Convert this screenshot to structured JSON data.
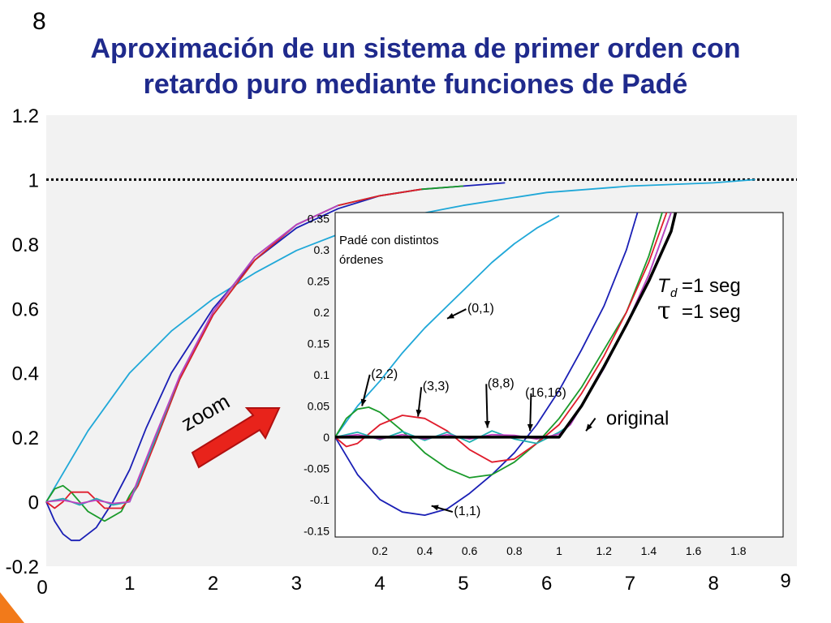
{
  "slide": {
    "number": "8",
    "title_line1": "Aproximación de un sistema de primer orden con",
    "title_line2": "retardo puro mediante funciones de Padé"
  },
  "colors": {
    "title": "#1f2a8c",
    "plot_bg": "#f2f2f2",
    "arrow": "#e8231b",
    "series": {
      "(0,1)": "#20a8d8",
      "(1,1)": "#1a1fb5",
      "(2,2)": "#1a9a2a",
      "(3,3)": "#e01c2c",
      "(8,8)": "#1fb0b0",
      "(16,16)": "#c040c0",
      "original": "#000000"
    }
  },
  "chart_data": [
    {
      "type": "line",
      "title": "",
      "xlabel": "",
      "ylabel": "",
      "xlim": [
        0,
        9
      ],
      "ylim": [
        -0.2,
        1.2
      ],
      "x_ticks": [
        "0",
        "1",
        "2",
        "3",
        "4",
        "5",
        "6",
        "7",
        "8",
        "9"
      ],
      "y_ticks": [
        "-0.2",
        "0",
        "0.2",
        "0.4",
        "0.6",
        "0.8",
        "1",
        "1.2"
      ],
      "reference_line": {
        "y": 1,
        "style": "dotted"
      },
      "series": [
        {
          "key": "(0,1)",
          "x": [
            0,
            0.5,
            1,
            1.5,
            2,
            2.5,
            3,
            3.5,
            4,
            5,
            6,
            7,
            8,
            8.5
          ],
          "y": [
            0,
            0.22,
            0.4,
            0.53,
            0.63,
            0.71,
            0.78,
            0.83,
            0.87,
            0.92,
            0.96,
            0.98,
            0.99,
            1.0
          ]
        },
        {
          "key": "(1,1)",
          "x": [
            0,
            0.1,
            0.2,
            0.3,
            0.4,
            0.6,
            0.8,
            1.0,
            1.2,
            1.5,
            2,
            2.5,
            3,
            3.5,
            4,
            4.5,
            5,
            5.5
          ],
          "y": [
            0,
            -0.06,
            -0.1,
            -0.12,
            -0.12,
            -0.08,
            0.0,
            0.1,
            0.23,
            0.4,
            0.6,
            0.75,
            0.85,
            0.91,
            0.95,
            0.97,
            0.98,
            0.99
          ]
        },
        {
          "key": "(2,2)",
          "x": [
            0,
            0.1,
            0.2,
            0.3,
            0.5,
            0.7,
            0.9,
            1.0,
            1.1,
            1.3,
            1.6,
            2,
            2.5,
            3,
            3.5,
            4,
            4.5,
            5
          ],
          "y": [
            0,
            0.04,
            0.05,
            0.03,
            -0.03,
            -0.06,
            -0.03,
            0.02,
            0.06,
            0.18,
            0.38,
            0.58,
            0.75,
            0.86,
            0.92,
            0.95,
            0.97,
            0.98
          ]
        },
        {
          "key": "(3,3)",
          "x": [
            0,
            0.1,
            0.2,
            0.3,
            0.5,
            0.7,
            0.9,
            1.0,
            1.1,
            1.3,
            1.6,
            2,
            2.5,
            3,
            3.5,
            4,
            4.5
          ],
          "y": [
            0,
            -0.02,
            0.0,
            0.03,
            0.03,
            -0.02,
            -0.02,
            0.01,
            0.05,
            0.18,
            0.38,
            0.58,
            0.75,
            0.86,
            0.92,
            0.95,
            0.97
          ]
        },
        {
          "key": "(8,8)",
          "x": [
            0,
            0.2,
            0.4,
            0.6,
            0.8,
            1.0,
            1.1,
            1.3,
            1.6,
            2,
            2.5,
            3,
            3.5
          ],
          "y": [
            0,
            0.01,
            -0.01,
            0.01,
            -0.01,
            0.0,
            0.06,
            0.19,
            0.39,
            0.59,
            0.76,
            0.86,
            0.92
          ]
        },
        {
          "key": "(16,16)",
          "x": [
            0,
            0.2,
            0.4,
            0.6,
            0.8,
            1.0,
            1.1,
            1.3,
            1.6,
            2,
            2.5,
            3,
            3.5
          ],
          "y": [
            0,
            0.005,
            -0.005,
            0.005,
            -0.005,
            0.0,
            0.07,
            0.2,
            0.39,
            0.59,
            0.76,
            0.86,
            0.92
          ]
        }
      ]
    },
    {
      "type": "line",
      "title": "Padé con distintos órdenes",
      "xlim": [
        0,
        2
      ],
      "ylim": [
        -0.16,
        0.36
      ],
      "x_ticks": [
        "0.2",
        "0.4",
        "0.6",
        "0.8",
        "1",
        "1.2",
        "1.4",
        "1.6",
        "1.8"
      ],
      "y_ticks": [
        "-0.15",
        "-0.1",
        "-0.05",
        "0",
        "0.05",
        "0.1",
        "0.15",
        "0.2",
        "0.25",
        "0.3",
        "0.35"
      ],
      "series": [
        {
          "key": "(0,1)",
          "label": "(0,1)",
          "x": [
            0,
            0.1,
            0.2,
            0.3,
            0.4,
            0.5,
            0.6,
            0.7,
            0.8,
            0.9,
            1.0
          ],
          "y": [
            0,
            0.05,
            0.09,
            0.135,
            0.175,
            0.21,
            0.245,
            0.28,
            0.31,
            0.335,
            0.355
          ]
        },
        {
          "key": "(1,1)",
          "label": "(1,1)",
          "x": [
            0,
            0.1,
            0.2,
            0.3,
            0.4,
            0.5,
            0.6,
            0.7,
            0.8,
            0.9,
            1.0,
            1.1,
            1.2,
            1.3,
            1.35
          ],
          "y": [
            0,
            -0.06,
            -0.1,
            -0.12,
            -0.125,
            -0.115,
            -0.09,
            -0.06,
            -0.025,
            0.02,
            0.075,
            0.14,
            0.21,
            0.3,
            0.36
          ]
        },
        {
          "key": "(2,2)",
          "label": "(2,2)",
          "x": [
            0,
            0.05,
            0.1,
            0.15,
            0.2,
            0.3,
            0.4,
            0.5,
            0.6,
            0.7,
            0.8,
            0.9,
            1.0,
            1.1,
            1.2,
            1.3,
            1.4,
            1.46
          ],
          "y": [
            0,
            0.03,
            0.045,
            0.048,
            0.04,
            0.01,
            -0.025,
            -0.05,
            -0.065,
            -0.06,
            -0.04,
            -0.01,
            0.03,
            0.08,
            0.14,
            0.2,
            0.29,
            0.36
          ]
        },
        {
          "key": "(3,3)",
          "label": "(3,3)",
          "x": [
            0,
            0.05,
            0.1,
            0.2,
            0.3,
            0.4,
            0.5,
            0.6,
            0.7,
            0.8,
            0.9,
            1.0,
            1.1,
            1.2,
            1.3,
            1.4,
            1.48
          ],
          "y": [
            0,
            -0.015,
            -0.01,
            0.02,
            0.035,
            0.03,
            0.01,
            -0.02,
            -0.04,
            -0.035,
            -0.01,
            0.02,
            0.07,
            0.13,
            0.2,
            0.28,
            0.36
          ]
        },
        {
          "key": "(8,8)",
          "label": "(8,8)",
          "x": [
            0,
            0.1,
            0.2,
            0.3,
            0.4,
            0.5,
            0.6,
            0.7,
            0.8,
            0.9,
            1.0,
            1.05,
            1.1,
            1.2,
            1.3,
            1.4,
            1.5
          ],
          "y": [
            0,
            0.008,
            -0.004,
            0.009,
            -0.005,
            0.008,
            -0.008,
            0.01,
            -0.003,
            -0.01,
            0.008,
            0.02,
            0.05,
            0.11,
            0.18,
            0.26,
            0.36
          ]
        },
        {
          "key": "(16,16)",
          "label": "(16,16)",
          "x": [
            0,
            0.1,
            0.2,
            0.3,
            0.4,
            0.5,
            0.6,
            0.7,
            0.8,
            0.9,
            1.0,
            1.05,
            1.1,
            1.2,
            1.3,
            1.4,
            1.5
          ],
          "y": [
            0,
            0.004,
            -0.003,
            0.004,
            -0.003,
            0.004,
            -0.003,
            0.004,
            0.003,
            -0.003,
            0.005,
            0.02,
            0.05,
            0.11,
            0.18,
            0.26,
            0.36
          ]
        },
        {
          "key": "original",
          "label": "original",
          "x": [
            0,
            1.0,
            1.1,
            1.2,
            1.3,
            1.4,
            1.5,
            1.52
          ],
          "y": [
            0,
            0,
            0.05,
            0.113,
            0.18,
            0.25,
            0.33,
            0.36
          ]
        }
      ],
      "annotations": {
        "td": "T",
        "td_sub": "d",
        "td_value": "=1 seg",
        "tau": "τ",
        "tau_value": "=1 seg"
      }
    }
  ],
  "zoom_label": "zoom"
}
